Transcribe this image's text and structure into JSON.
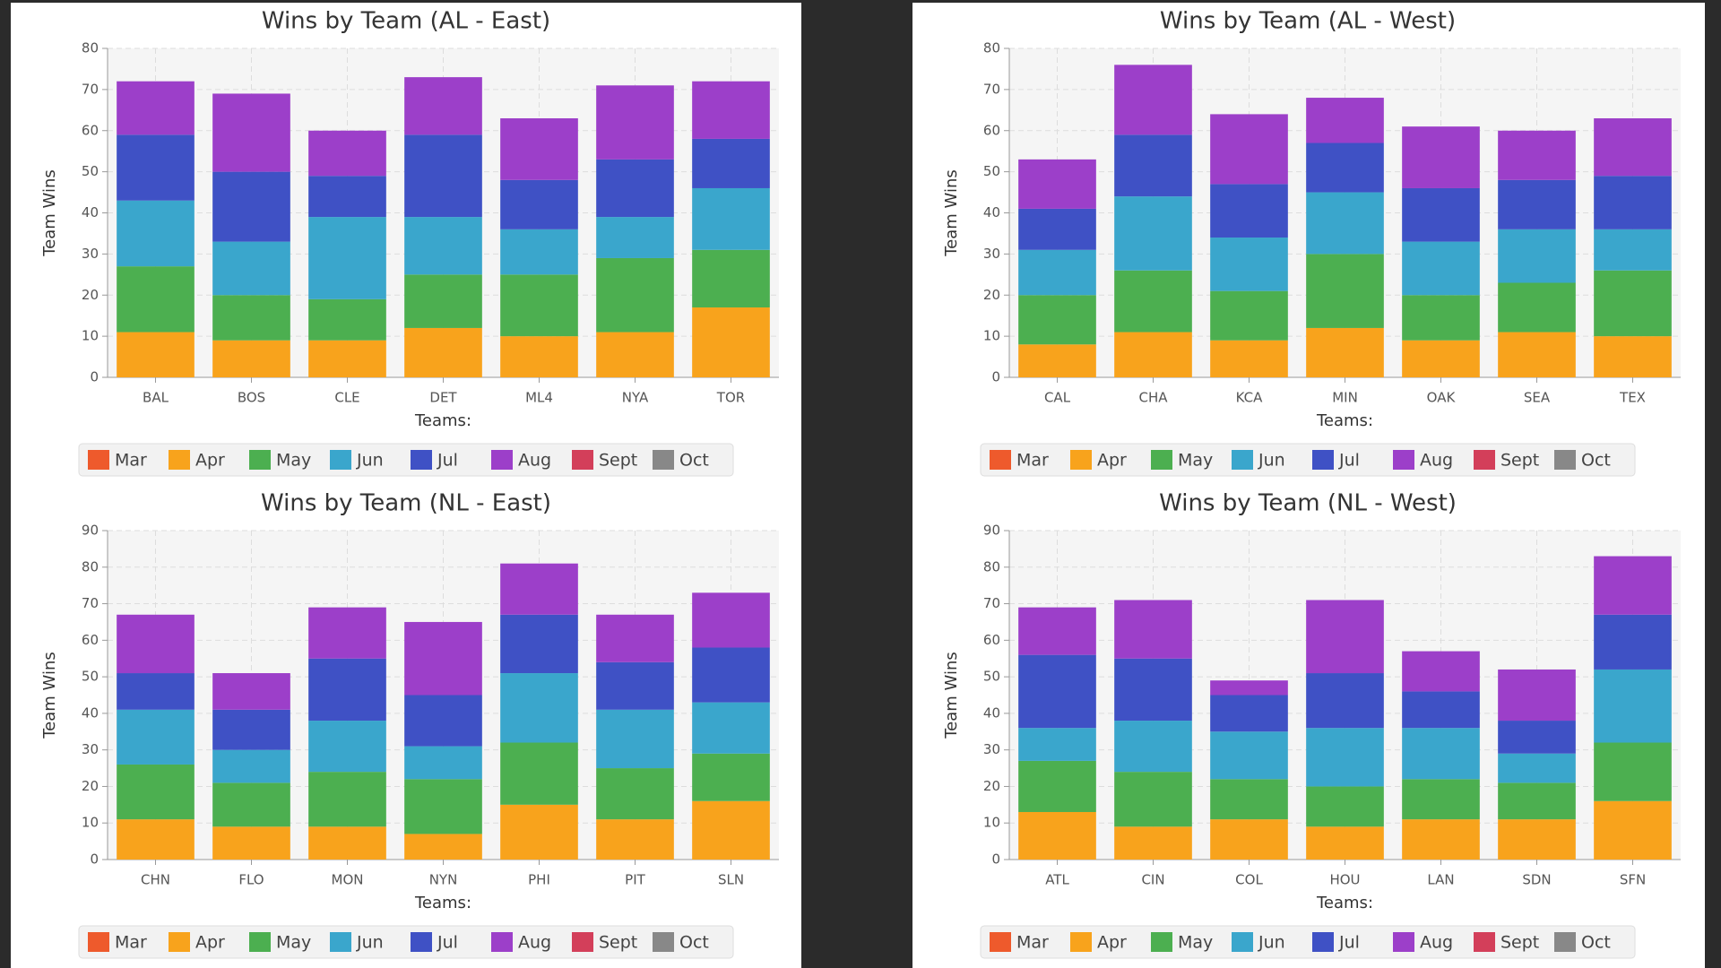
{
  "chart_data": [
    {
      "type": "bar",
      "stacked": true,
      "title": "Wins by Team (AL - East)",
      "x_label": "Teams:",
      "y_label": "Team Wins",
      "legend": "bottom",
      "grid": true,
      "categories": [
        "BAL",
        "BOS",
        "CLE",
        "DET",
        "ML4",
        "NYA",
        "TOR"
      ],
      "ylim": [
        0,
        80
      ],
      "yticks": [
        0,
        10,
        20,
        30,
        40,
        50,
        60,
        70,
        80
      ],
      "series": [
        {
          "name": "Mar",
          "color": "#ee5a2c",
          "values": [
            0,
            0,
            0,
            0,
            0,
            0,
            0
          ]
        },
        {
          "name": "Apr",
          "color": "#f8a31c",
          "values": [
            11,
            9,
            9,
            12,
            10,
            11,
            17
          ]
        },
        {
          "name": "May",
          "color": "#4caf50",
          "values": [
            16,
            11,
            10,
            13,
            15,
            18,
            14
          ]
        },
        {
          "name": "Jun",
          "color": "#3aa6cc",
          "values": [
            16,
            13,
            20,
            14,
            11,
            10,
            15
          ]
        },
        {
          "name": "Jul",
          "color": "#3f51c5",
          "values": [
            16,
            17,
            10,
            20,
            12,
            14,
            12
          ]
        },
        {
          "name": "Aug",
          "color": "#9c3fc9",
          "values": [
            13,
            19,
            11,
            14,
            15,
            18,
            14
          ]
        },
        {
          "name": "Sept",
          "color": "#d33f5a",
          "values": [
            0,
            0,
            0,
            0,
            0,
            0,
            0
          ]
        },
        {
          "name": "Oct",
          "color": "#888888",
          "values": [
            0,
            0,
            0,
            0,
            0,
            0,
            0
          ]
        }
      ]
    },
    {
      "type": "bar",
      "stacked": true,
      "title": "Wins by Team (AL - West)",
      "x_label": "Teams:",
      "y_label": "Team Wins",
      "legend": "bottom",
      "grid": true,
      "categories": [
        "CAL",
        "CHA",
        "KCA",
        "MIN",
        "OAK",
        "SEA",
        "TEX"
      ],
      "ylim": [
        0,
        80
      ],
      "yticks": [
        0,
        10,
        20,
        30,
        40,
        50,
        60,
        70,
        80
      ],
      "series": [
        {
          "name": "Mar",
          "color": "#ee5a2c",
          "values": [
            0,
            0,
            0,
            0,
            0,
            0,
            0
          ]
        },
        {
          "name": "Apr",
          "color": "#f8a31c",
          "values": [
            8,
            11,
            9,
            12,
            9,
            11,
            10
          ]
        },
        {
          "name": "May",
          "color": "#4caf50",
          "values": [
            12,
            15,
            12,
            18,
            11,
            12,
            16
          ]
        },
        {
          "name": "Jun",
          "color": "#3aa6cc",
          "values": [
            11,
            18,
            13,
            15,
            13,
            13,
            10
          ]
        },
        {
          "name": "Jul",
          "color": "#3f51c5",
          "values": [
            10,
            15,
            13,
            12,
            13,
            12,
            13
          ]
        },
        {
          "name": "Aug",
          "color": "#9c3fc9",
          "values": [
            12,
            17,
            17,
            11,
            15,
            12,
            14
          ]
        },
        {
          "name": "Sept",
          "color": "#d33f5a",
          "values": [
            0,
            0,
            0,
            0,
            0,
            0,
            0
          ]
        },
        {
          "name": "Oct",
          "color": "#888888",
          "values": [
            0,
            0,
            0,
            0,
            0,
            0,
            0
          ]
        }
      ]
    },
    {
      "type": "bar",
      "stacked": true,
      "title": "Wins by Team (NL - East)",
      "x_label": "Teams:",
      "y_label": "Team Wins",
      "legend": "bottom",
      "grid": true,
      "categories": [
        "CHN",
        "FLO",
        "MON",
        "NYN",
        "PHI",
        "PIT",
        "SLN"
      ],
      "ylim": [
        0,
        90
      ],
      "yticks": [
        0,
        10,
        20,
        30,
        40,
        50,
        60,
        70,
        80,
        90
      ],
      "series": [
        {
          "name": "Mar",
          "color": "#ee5a2c",
          "values": [
            0,
            0,
            0,
            0,
            0,
            0,
            0
          ]
        },
        {
          "name": "Apr",
          "color": "#f8a31c",
          "values": [
            11,
            9,
            9,
            7,
            15,
            11,
            16
          ]
        },
        {
          "name": "May",
          "color": "#4caf50",
          "values": [
            15,
            12,
            15,
            15,
            17,
            14,
            13
          ]
        },
        {
          "name": "Jun",
          "color": "#3aa6cc",
          "values": [
            15,
            9,
            14,
            9,
            19,
            16,
            14
          ]
        },
        {
          "name": "Jul",
          "color": "#3f51c5",
          "values": [
            10,
            11,
            17,
            14,
            16,
            13,
            15
          ]
        },
        {
          "name": "Aug",
          "color": "#9c3fc9",
          "values": [
            16,
            10,
            14,
            20,
            14,
            13,
            15
          ]
        },
        {
          "name": "Sept",
          "color": "#d33f5a",
          "values": [
            0,
            0,
            0,
            0,
            0,
            0,
            0
          ]
        },
        {
          "name": "Oct",
          "color": "#888888",
          "values": [
            0,
            0,
            0,
            0,
            0,
            0,
            0
          ]
        }
      ]
    },
    {
      "type": "bar",
      "stacked": true,
      "title": "Wins by Team (NL - West)",
      "x_label": "Teams:",
      "y_label": "Team Wins",
      "legend": "bottom",
      "grid": true,
      "categories": [
        "ATL",
        "CIN",
        "COL",
        "HOU",
        "LAN",
        "SDN",
        "SFN"
      ],
      "ylim": [
        0,
        90
      ],
      "yticks": [
        0,
        10,
        20,
        30,
        40,
        50,
        60,
        70,
        80,
        90
      ],
      "series": [
        {
          "name": "Mar",
          "color": "#ee5a2c",
          "values": [
            0,
            0,
            0,
            0,
            0,
            0,
            0
          ]
        },
        {
          "name": "Apr",
          "color": "#f8a31c",
          "values": [
            13,
            9,
            11,
            9,
            11,
            11,
            16
          ]
        },
        {
          "name": "May",
          "color": "#4caf50",
          "values": [
            14,
            15,
            11,
            11,
            11,
            10,
            16
          ]
        },
        {
          "name": "Jun",
          "color": "#3aa6cc",
          "values": [
            9,
            14,
            13,
            16,
            14,
            8,
            20
          ]
        },
        {
          "name": "Jul",
          "color": "#3f51c5",
          "values": [
            20,
            17,
            10,
            15,
            10,
            9,
            15
          ]
        },
        {
          "name": "Aug",
          "color": "#9c3fc9",
          "values": [
            13,
            16,
            4,
            20,
            11,
            14,
            16
          ]
        },
        {
          "name": "Sept",
          "color": "#d33f5a",
          "values": [
            0,
            0,
            0,
            0,
            0,
            0,
            0
          ]
        },
        {
          "name": "Oct",
          "color": "#888888",
          "values": [
            0,
            0,
            0,
            0,
            0,
            0,
            0
          ]
        }
      ]
    }
  ]
}
